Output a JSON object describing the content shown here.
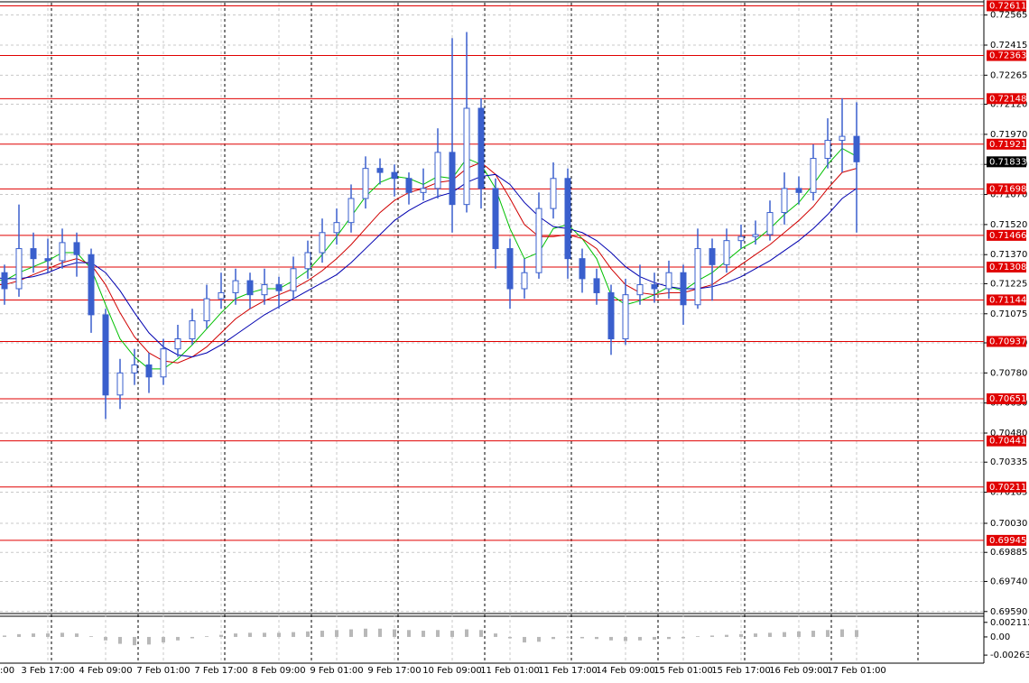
{
  "chart_data": [
    {
      "type": "candlestick",
      "categories": [
        ":00",
        null,
        null,
        null,
        "3 Feb 17:00",
        null,
        null,
        null,
        "4 Feb 09:00",
        null,
        null,
        null,
        "7 Feb 01:00",
        null,
        null,
        null,
        "7 Feb 17:00",
        null,
        null,
        null,
        "8 Feb 09:00",
        null,
        null,
        null,
        "9 Feb 01:00",
        null,
        null,
        null,
        "9 Feb 17:00",
        null,
        null,
        null,
        "10 Feb 09:00",
        null,
        null,
        null,
        "11 Feb 01:00",
        null,
        null,
        null,
        "11 Feb 17:00",
        null,
        null,
        null,
        "14 Feb 09:00",
        null,
        null,
        null,
        "15 Feb 01:00",
        null,
        null,
        null,
        "15 Feb 17:00",
        null,
        null,
        null,
        "16 Feb 09:00",
        null,
        null,
        null,
        "17 Feb 01:00"
      ],
      "open": [
        0.7132,
        0.7128,
        0.712,
        0.714,
        0.7135,
        0.7134,
        0.7143,
        0.7137,
        0.7107,
        0.7067,
        0.7078,
        0.7082,
        0.7076,
        0.709,
        0.7095,
        0.7104,
        0.7115,
        0.7118,
        0.7124,
        0.7117,
        0.7122,
        0.7119,
        0.713,
        0.7138,
        0.7148,
        0.7153,
        0.7165,
        0.718,
        0.7178,
        0.7175,
        0.7168,
        0.717,
        0.7188,
        0.7162,
        0.721,
        0.717,
        0.714,
        0.712,
        0.7128,
        0.716,
        0.7175,
        0.7135,
        0.7125,
        0.7118,
        0.7095,
        0.7117,
        0.7122,
        0.712,
        0.7128,
        0.7112,
        0.714,
        0.7132,
        0.7144,
        0.7146,
        0.7147,
        0.7158,
        0.717,
        0.7168,
        0.7185,
        0.7194,
        0.7196
      ],
      "high": [
        0.7137,
        0.7132,
        0.7162,
        0.7148,
        0.7145,
        0.715,
        0.7148,
        0.714,
        0.711,
        0.7085,
        0.709,
        0.7088,
        0.7095,
        0.7102,
        0.711,
        0.7122,
        0.7128,
        0.713,
        0.7128,
        0.713,
        0.7126,
        0.7136,
        0.7144,
        0.7155,
        0.716,
        0.7172,
        0.7186,
        0.7185,
        0.7182,
        0.7178,
        0.718,
        0.72,
        0.7245,
        0.7248,
        0.7215,
        0.7175,
        0.7145,
        0.7135,
        0.7168,
        0.7183,
        0.718,
        0.714,
        0.713,
        0.7122,
        0.7125,
        0.7132,
        0.7128,
        0.7134,
        0.7132,
        0.715,
        0.7145,
        0.715,
        0.7152,
        0.7154,
        0.7164,
        0.7178,
        0.7176,
        0.7192,
        0.7205,
        0.7215,
        0.7213
      ],
      "low": [
        0.7122,
        0.7112,
        0.7116,
        0.7128,
        0.7128,
        0.713,
        0.7126,
        0.7098,
        0.7055,
        0.706,
        0.7072,
        0.7068,
        0.7072,
        0.7086,
        0.7092,
        0.71,
        0.711,
        0.7112,
        0.711,
        0.7112,
        0.711,
        0.7115,
        0.7125,
        0.7133,
        0.7142,
        0.7148,
        0.716,
        0.7172,
        0.7166,
        0.7162,
        0.7164,
        0.7165,
        0.7148,
        0.7158,
        0.716,
        0.713,
        0.711,
        0.7115,
        0.7125,
        0.7155,
        0.7125,
        0.7118,
        0.7112,
        0.7087,
        0.7092,
        0.7112,
        0.7113,
        0.7115,
        0.7102,
        0.711,
        0.7114,
        0.7128,
        0.714,
        0.7142,
        0.7144,
        0.7152,
        0.7162,
        0.7164,
        0.718,
        0.7178,
        0.7148
      ],
      "close": [
        0.7128,
        0.712,
        0.714,
        0.7135,
        0.7134,
        0.7143,
        0.7137,
        0.7107,
        0.7067,
        0.7078,
        0.7082,
        0.7076,
        0.709,
        0.7095,
        0.7104,
        0.7115,
        0.7118,
        0.7124,
        0.7117,
        0.7122,
        0.7119,
        0.713,
        0.7138,
        0.7148,
        0.7153,
        0.7165,
        0.718,
        0.7178,
        0.7175,
        0.7168,
        0.717,
        0.7188,
        0.7162,
        0.721,
        0.717,
        0.714,
        0.712,
        0.7128,
        0.716,
        0.7175,
        0.7135,
        0.7125,
        0.7118,
        0.7095,
        0.7117,
        0.7122,
        0.712,
        0.7128,
        0.7112,
        0.714,
        0.7132,
        0.7144,
        0.7146,
        0.7147,
        0.7158,
        0.717,
        0.7168,
        0.7185,
        0.7194,
        0.7196,
        0.71833
      ],
      "color": "#3a5fcd",
      "series": [
        {
          "color": "#00c000",
          "values": [
            0.7125,
            0.7124,
            0.7128,
            0.7131,
            0.7134,
            0.7138,
            0.7138,
            0.713,
            0.7112,
            0.7095,
            0.7086,
            0.708,
            0.708,
            0.7085,
            0.7092,
            0.71,
            0.7108,
            0.7115,
            0.7118,
            0.712,
            0.712,
            0.7124,
            0.7129,
            0.7137,
            0.7146,
            0.7156,
            0.7166,
            0.7173,
            0.7176,
            0.7175,
            0.7172,
            0.7176,
            0.7175,
            0.7185,
            0.7182,
            0.717,
            0.715,
            0.7135,
            0.7138,
            0.715,
            0.7152,
            0.7145,
            0.7135,
            0.7117,
            0.7112,
            0.7114,
            0.7117,
            0.7121,
            0.7119,
            0.7124,
            0.7128,
            0.7134,
            0.714,
            0.7144,
            0.715,
            0.7157,
            0.7163,
            0.7172,
            0.7182,
            0.719,
            0.7186
          ]
        },
        {
          "color": "#d00000",
          "values": [
            0.7122,
            0.7122,
            0.7124,
            0.7127,
            0.713,
            0.7133,
            0.7135,
            0.7132,
            0.7122,
            0.7108,
            0.7096,
            0.7088,
            0.7084,
            0.7083,
            0.7086,
            0.7091,
            0.7098,
            0.7105,
            0.711,
            0.7114,
            0.7117,
            0.712,
            0.7124,
            0.7129,
            0.7135,
            0.7142,
            0.715,
            0.7158,
            0.7164,
            0.7168,
            0.717,
            0.7173,
            0.7174,
            0.718,
            0.7183,
            0.7177,
            0.7165,
            0.7152,
            0.7146,
            0.7146,
            0.7147,
            0.7145,
            0.714,
            0.713,
            0.7122,
            0.7118,
            0.7117,
            0.7118,
            0.7118,
            0.712,
            0.7122,
            0.7127,
            0.7132,
            0.7137,
            0.7142,
            0.7148,
            0.7154,
            0.7161,
            0.717,
            0.7178,
            0.718
          ]
        },
        {
          "color": "#0000b0",
          "values": [
            0.7126,
            0.7125,
            0.7125,
            0.7126,
            0.7128,
            0.7131,
            0.7133,
            0.7133,
            0.7128,
            0.7119,
            0.7108,
            0.7098,
            0.7091,
            0.7087,
            0.7086,
            0.7088,
            0.7092,
            0.7097,
            0.7102,
            0.7107,
            0.7111,
            0.7115,
            0.7119,
            0.7123,
            0.7127,
            0.7133,
            0.714,
            0.7147,
            0.7154,
            0.7159,
            0.7163,
            0.7166,
            0.7168,
            0.7173,
            0.7176,
            0.7177,
            0.7172,
            0.7163,
            0.7156,
            0.7151,
            0.715,
            0.7148,
            0.7144,
            0.7138,
            0.7131,
            0.7126,
            0.7123,
            0.7121,
            0.712,
            0.712,
            0.7121,
            0.7123,
            0.7126,
            0.713,
            0.7134,
            0.7139,
            0.7144,
            0.715,
            0.7157,
            0.7165,
            0.717
          ]
        }
      ],
      "levels": [
        0.72611,
        0.72363,
        0.72148,
        0.71921,
        0.71698,
        0.71466,
        0.71308,
        0.71144,
        0.70937,
        0.70651,
        0.70441,
        0.70211,
        0.69945
      ],
      "level_color": "#e00000",
      "current_price": 0.71833,
      "ylim": [
        0.6958,
        0.7264
      ],
      "yticks": [
        0.72565,
        0.72415,
        0.72265,
        {
          "value": 0.7212,
          "label": "0.72120"
        },
        {
          "value": 0.7197,
          "label": "0.71970"
        },
        {
          "value": 0.7182,
          "label": "0.71820"
        },
        {
          "value": 0.7167,
          "label": "0.71670"
        },
        {
          "value": 0.7152,
          "label": "0.71520"
        },
        {
          "value": 0.7137,
          "label": "0.71370"
        },
        0.71225,
        0.71075,
        {
          "value": 0.7093,
          "label": "0.70930"
        },
        {
          "value": 0.7078,
          "label": "0.70780"
        },
        {
          "value": 0.7063,
          "label": "0.70630"
        },
        {
          "value": 0.7048,
          "label": "0.70480"
        },
        0.70335,
        0.70185,
        {
          "value": 0.7003,
          "label": "0.70030"
        },
        0.69885,
        {
          "value": 0.6974,
          "label": "0.69740"
        },
        {
          "value": 0.6959,
          "label": "0.69590"
        }
      ],
      "grid": true
    },
    {
      "type": "bar",
      "values": [
        0.0003,
        0.0002,
        0.0004,
        0.0005,
        0.0005,
        0.0006,
        0.0005,
        0.0001,
        -0.0005,
        -0.001,
        -0.0012,
        -0.0011,
        -0.0008,
        -0.0005,
        -0.0002,
        0.0001,
        0.0003,
        0.0005,
        0.0006,
        0.0006,
        0.0006,
        0.0007,
        0.0008,
        0.0009,
        0.001,
        0.0011,
        0.0012,
        0.0012,
        0.0011,
        0.001,
        0.0009,
        0.001,
        0.0009,
        0.0011,
        0.001,
        0.0005,
        -0.0002,
        -0.0008,
        -0.0007,
        -0.0003,
        -0.0001,
        -0.0002,
        -0.0003,
        -0.0005,
        -0.0006,
        -0.0005,
        -0.0004,
        -0.0003,
        -0.0002,
        0.0001,
        0.0002,
        0.0003,
        0.0004,
        0.0005,
        0.0006,
        0.0007,
        0.0008,
        0.0009,
        0.001,
        0.0011,
        0.001
      ],
      "color": "#b8b8b8",
      "ylim": [
        -0.0038,
        0.003
      ],
      "yticks": [
        0.002112,
        {
          "value": 0,
          "label": "0.00"
        },
        -0.002635
      ]
    }
  ]
}
